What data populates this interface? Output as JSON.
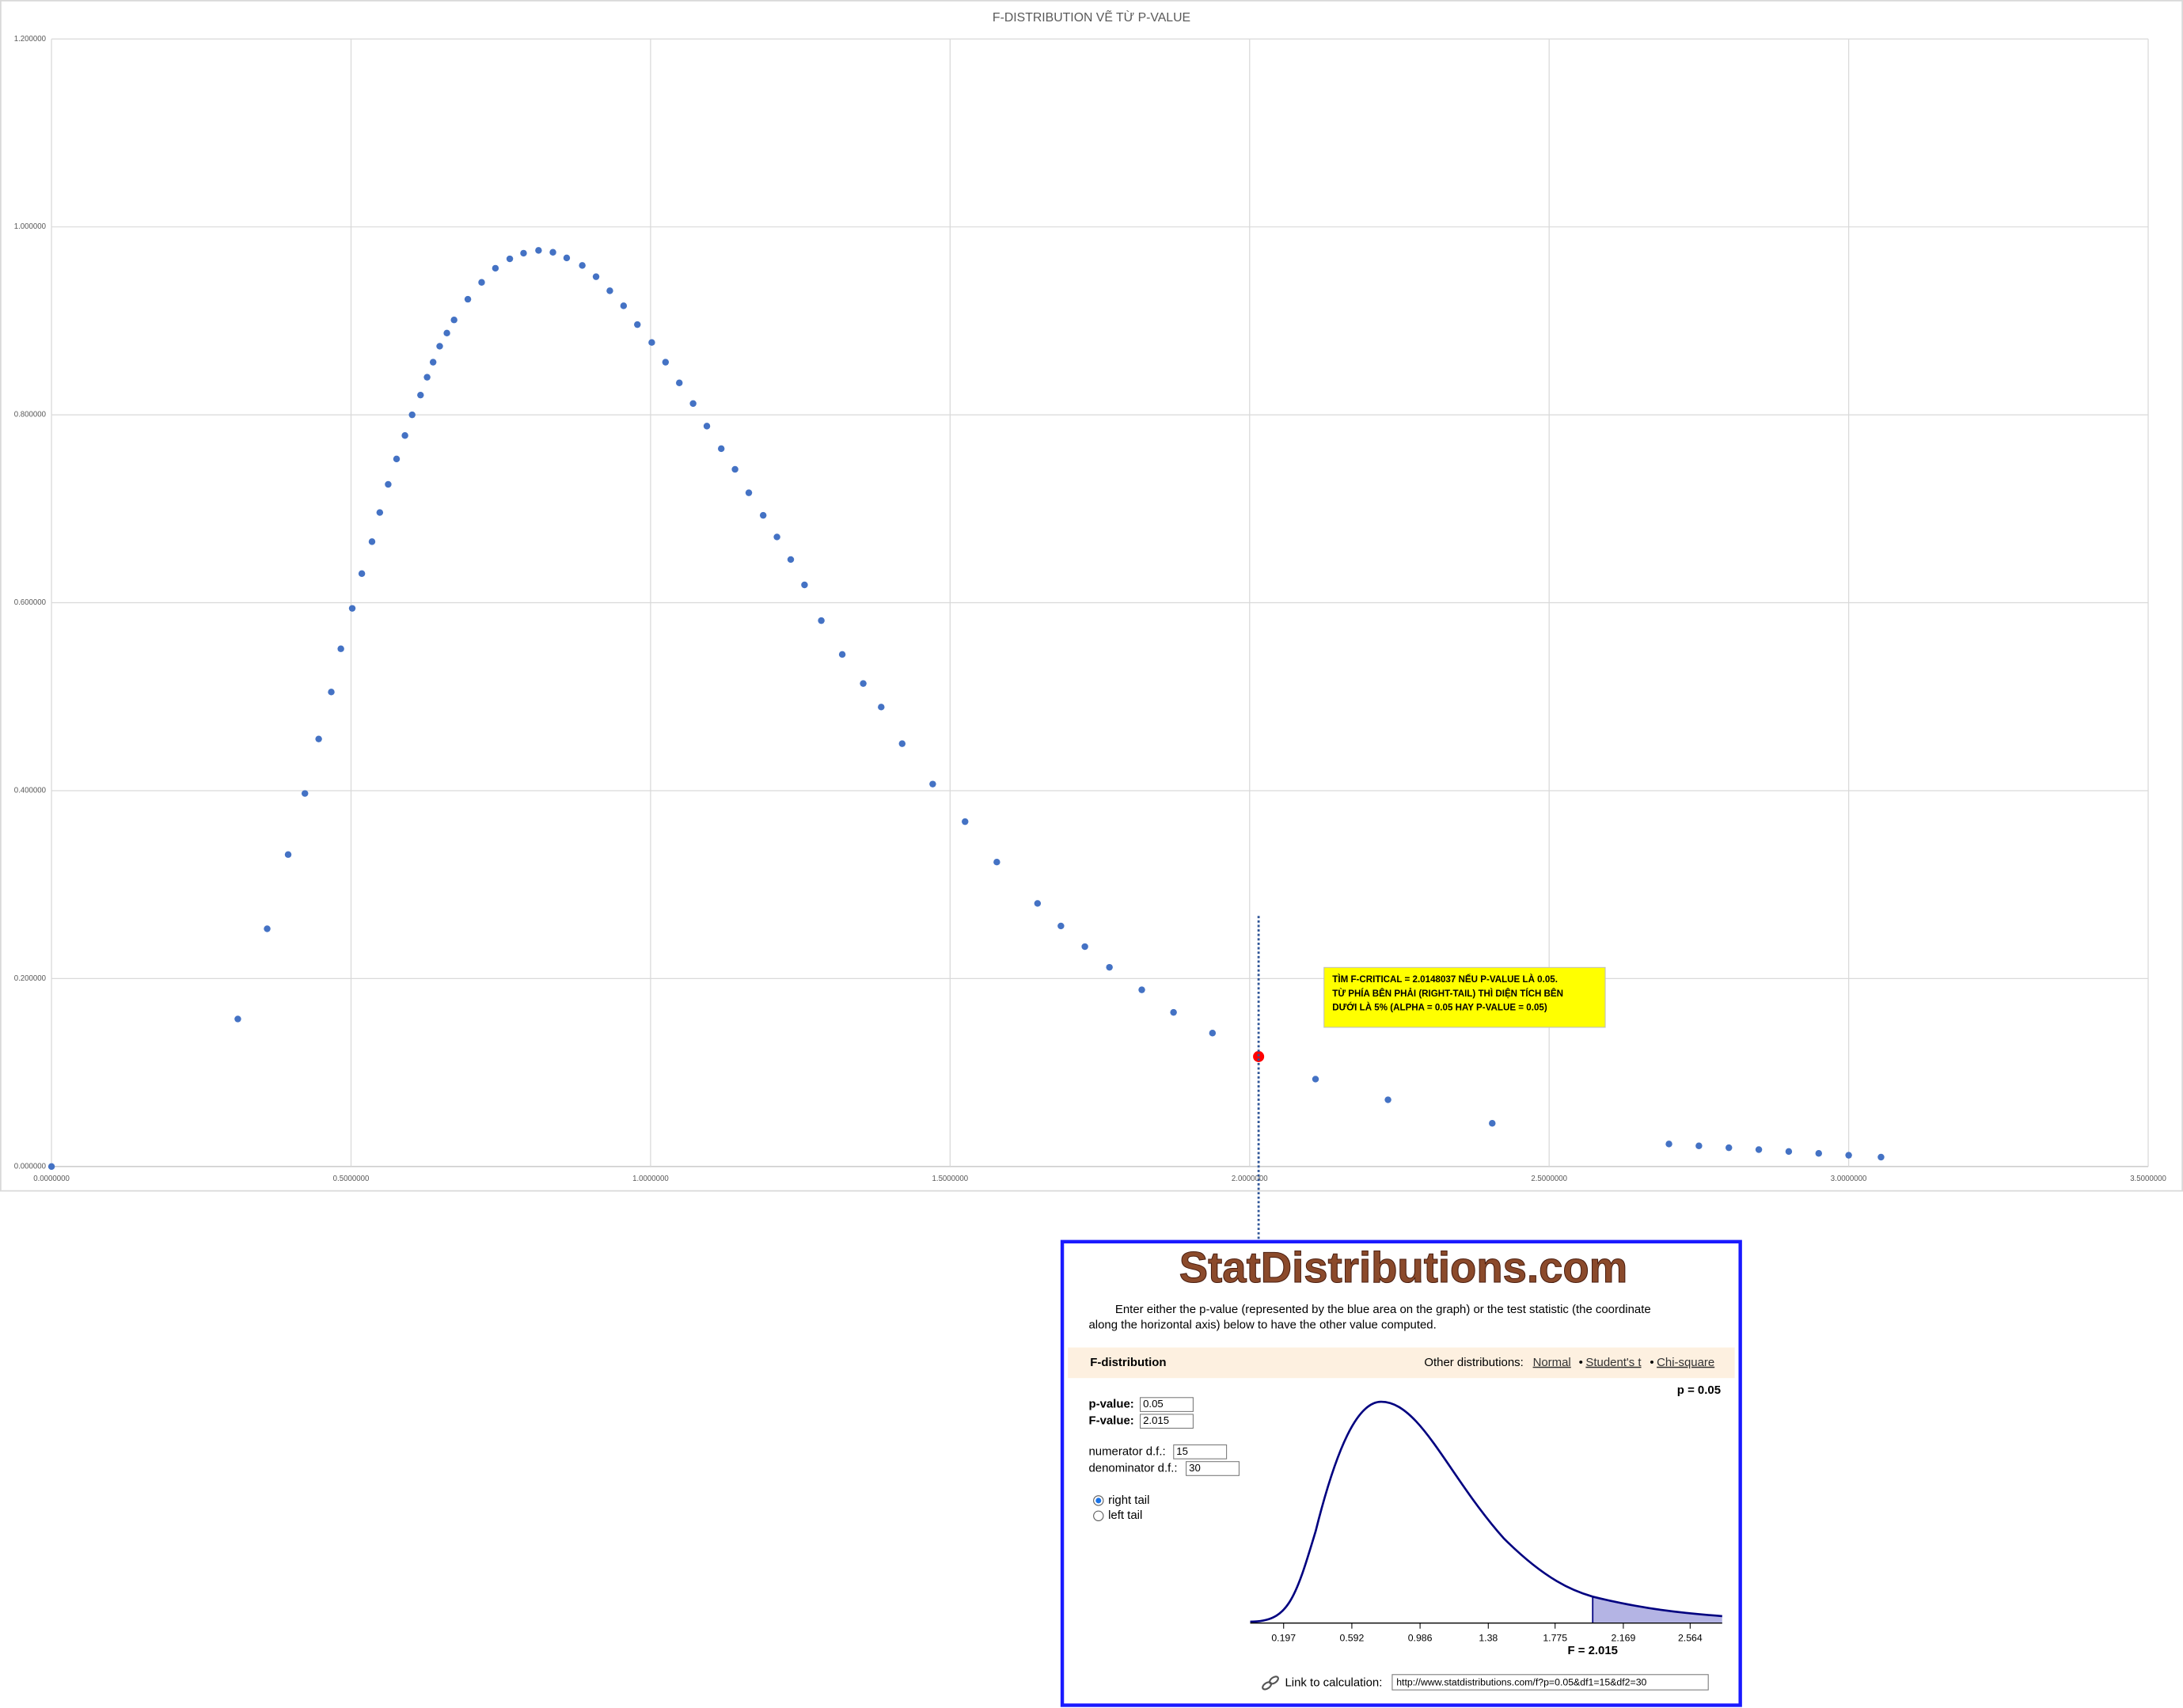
{
  "chart_data": {
    "type": "scatter",
    "title": "F-DISTRIBUTION VẼ TỪ P-VALUE",
    "series": [
      {
        "color": "#4472c4",
        "x": [
          0,
          0.311,
          0.36,
          0.395,
          0.423,
          0.446,
          0.467,
          0.483,
          0.502,
          0.518,
          0.535,
          0.548,
          0.562,
          0.576,
          0.59,
          0.602,
          0.616,
          0.627,
          0.637,
          0.648,
          0.66,
          0.672,
          0.695,
          0.718,
          0.741,
          0.765,
          0.788,
          0.813,
          0.837,
          0.86,
          0.886,
          0.909,
          0.932,
          0.955,
          0.978,
          1.002,
          1.025,
          1.048,
          1.071,
          1.094,
          1.118,
          1.141,
          1.164,
          1.188,
          1.211,
          1.234,
          1.257,
          1.285,
          1.32,
          1.355,
          1.385,
          1.42,
          1.471,
          1.525,
          1.578,
          1.646,
          1.685,
          1.725,
          1.766,
          1.82,
          1.873,
          1.938,
          2.11,
          2.231,
          2.405,
          2.7,
          2.75,
          2.8,
          2.85,
          2.9,
          2.95,
          3.0,
          3.054
        ],
        "values": [
          0,
          0.157,
          0.253,
          0.332,
          0.397,
          0.455,
          0.505,
          0.551,
          0.594,
          0.631,
          0.665,
          0.696,
          0.726,
          0.753,
          0.778,
          0.8,
          0.821,
          0.84,
          0.856,
          0.873,
          0.887,
          0.901,
          0.923,
          0.941,
          0.956,
          0.966,
          0.972,
          0.975,
          0.973,
          0.967,
          0.959,
          0.947,
          0.932,
          0.916,
          0.896,
          0.877,
          0.856,
          0.834,
          0.812,
          0.788,
          0.764,
          0.742,
          0.717,
          0.693,
          0.67,
          0.646,
          0.619,
          0.581,
          0.545,
          0.514,
          0.489,
          0.45,
          0.407,
          0.367,
          0.324,
          0.28,
          0.256,
          0.234,
          0.212,
          0.188,
          0.164,
          0.142,
          0.093,
          0.071,
          0.046,
          0.024,
          0.022,
          0.02,
          0.018,
          0.016,
          0.014,
          0.012,
          0.01
        ]
      },
      {
        "color": "#ff0000",
        "x": [
          2.015
        ],
        "values": [
          0.117
        ]
      }
    ],
    "xlim": [
      0,
      3.5
    ],
    "xticks": [
      {
        "value": 0,
        "label": "0.0000000"
      },
      {
        "value": 0.5,
        "label": "0.5000000"
      },
      {
        "value": 1,
        "label": "1.0000000"
      },
      {
        "value": 1.5,
        "label": "1.5000000"
      },
      {
        "value": 2,
        "label": "2.0000000"
      },
      {
        "value": 2.5,
        "label": "2.5000000"
      },
      {
        "value": 3,
        "label": "3.0000000"
      },
      {
        "value": 3.5,
        "label": "3.5000000"
      }
    ],
    "ylim": [
      0,
      1.2
    ],
    "yticks": [
      {
        "value": 0,
        "label": "0.000000"
      },
      {
        "value": 0.2,
        "label": "0.200000"
      },
      {
        "value": 0.4,
        "label": "0.400000"
      },
      {
        "value": 0.6,
        "label": "0.600000"
      },
      {
        "value": 0.8,
        "label": "0.800000"
      },
      {
        "value": 1,
        "label": "1.000000"
      },
      {
        "value": 1.2,
        "label": "1.200000"
      }
    ],
    "grid": true,
    "annotation": [
      "TÌM F-CRITICAL = 2.0148037 NẾU P-VALUE LÀ 0.05.",
      "TỪ PHÍA BÊN PHẢI (RIGHT-TAIL) THÌ DIỆN TÍCH BÊN",
      "DƯỚI LÀ 5% (ALPHA = 0.05 HAY P-VALUE = 0.05)"
    ]
  },
  "inset": {
    "logo": "StatDistributions.com",
    "intro": [
      "Enter either the p-value (represented by the blue area on the graph) or the test statistic (the coordinate",
      "along the horizontal axis) below to have the other value computed."
    ],
    "tab_title": "F-distribution",
    "other_label": "Other distributions:",
    "links": [
      "Normal",
      "Student's t",
      "Chi-square"
    ],
    "separator": "•",
    "p_display": "p = 0.05",
    "fields": [
      {
        "label": "p-value:",
        "value": "0.05"
      },
      {
        "label": "F-value:",
        "value": "2.015"
      },
      {
        "label": "numerator d.f.:",
        "value": "15"
      },
      {
        "label": "denominator d.f.:",
        "value": "30"
      }
    ],
    "tails": [
      "right tail",
      "left tail"
    ],
    "axis_labels": [
      "0.197",
      "0.592",
      "0.986",
      "1.38",
      "1.775",
      "2.169",
      "2.564"
    ],
    "f_label": "F = 2.015",
    "link_label": "Link to calculation:",
    "link_url": "http://www.statdistributions.com/f?p=0.05&df1=15&df2=30"
  }
}
